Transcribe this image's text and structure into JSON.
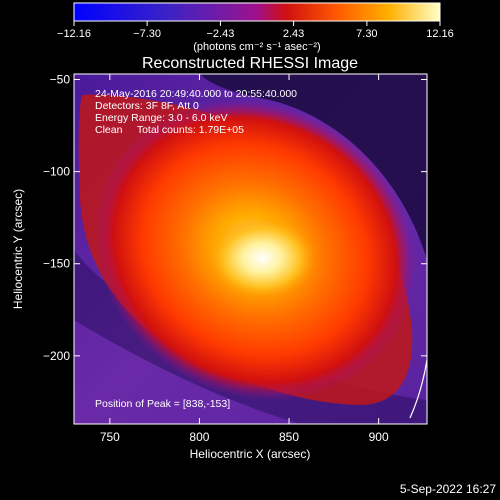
{
  "chart_data": {
    "type": "heatmap",
    "title": "Reconstructed RHESSI Image",
    "xlabel": "Heliocentric X (arcsec)",
    "ylabel": "Heliocentric Y (arcsec)",
    "xlim": [
      730,
      927
    ],
    "ylim": [
      -237,
      -47
    ],
    "x_ticks": [
      "750",
      "800",
      "850",
      "900"
    ],
    "x_tick_values": [
      750,
      800,
      850,
      900
    ],
    "y_ticks": [
      "−50",
      "−100",
      "−150",
      "−200"
    ],
    "y_tick_values": [
      -50,
      -100,
      -150,
      -200
    ],
    "colorbar": {
      "ticks": [
        "−12.16",
        "−7.30",
        "−2.43",
        "2.43",
        "7.30",
        "12.16"
      ],
      "tick_values": [
        -12.16,
        -7.3,
        -2.43,
        2.43,
        7.3,
        12.16
      ],
      "range": [
        -12.16,
        12.16
      ],
      "units": "(photons cm⁻² s⁻¹ asec⁻²)"
    },
    "annotations": [
      "24-May-2016 20:49:40.000 to 20:55:40.000",
      "Detectors: 3F 8F, Att 0",
      "Energy Range: 3.0 - 6.0 keV",
      "Clean     Total counts: 1.79E+05",
      "Position of Peak = [838,-153]"
    ],
    "peak": {
      "x": 838,
      "y": -153
    },
    "source_region": {
      "x_center": 815,
      "y_center": -145,
      "peak_value": 12.16
    },
    "grid": false
  },
  "footer": {
    "date": "5-Sep-2022 16:27"
  }
}
